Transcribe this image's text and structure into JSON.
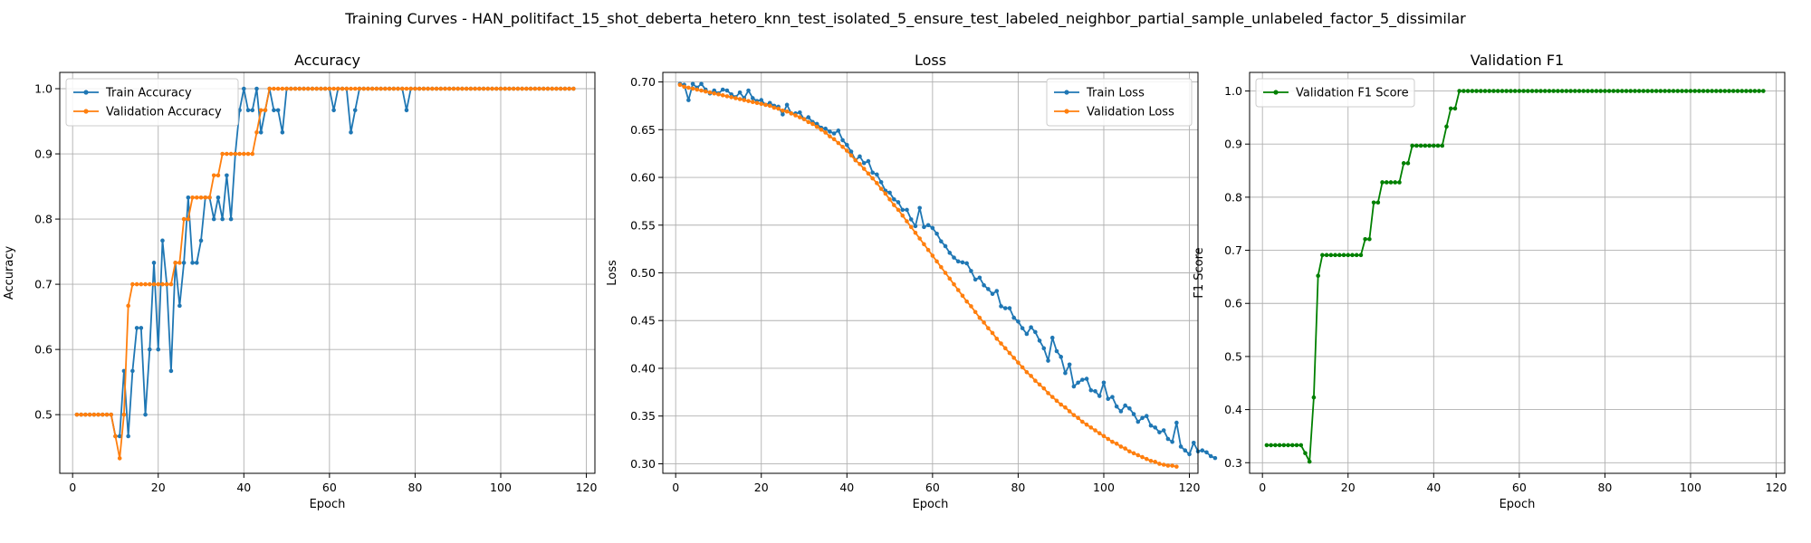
{
  "suptitle": "Training Curves - HAN_politifact_15_shot_deberta_hetero_knn_test_isolated_5_ensure_test_labeled_neighbor_partial_sample_unlabeled_factor_5_dissimilar",
  "colors": {
    "train": "#1f77b4",
    "validation": "#ff7f0e",
    "f1": "#008000",
    "grid": "#b0b0b0"
  },
  "chart_data": [
    {
      "type": "line",
      "title": "Accuracy",
      "xlabel": "Epoch",
      "ylabel": "Accuracy",
      "xlim": [
        -3,
        122
      ],
      "ylim": [
        0.41,
        1.025
      ],
      "xticks": [
        0,
        20,
        40,
        60,
        80,
        100,
        120
      ],
      "yticks": [
        0.5,
        0.6,
        0.7,
        0.8,
        0.9,
        1.0
      ],
      "ytick_labels": [
        "0.5",
        "0.6",
        "0.7",
        "0.8",
        "0.9",
        "1.0"
      ],
      "grid": true,
      "legend_position": "upper left",
      "series": [
        {
          "name": "Train Accuracy",
          "color": "#1f77b4",
          "x_start": 1,
          "values": [
            0.5,
            0.5,
            0.5,
            0.5,
            0.5,
            0.5,
            0.5,
            0.5,
            0.5,
            0.467,
            0.467,
            0.567,
            0.467,
            0.567,
            0.633,
            0.633,
            0.5,
            0.6,
            0.733,
            0.6,
            0.767,
            0.7,
            0.567,
            0.733,
            0.667,
            0.733,
            0.833,
            0.733,
            0.733,
            0.767,
            0.833,
            0.833,
            0.8,
            0.833,
            0.8,
            0.867,
            0.8,
            0.9,
            0.967,
            1.0,
            0.967,
            0.967,
            1.0,
            0.933,
            0.967,
            1.0,
            0.967,
            0.967,
            0.933,
            1.0,
            1.0,
            1.0,
            1.0,
            1.0,
            1.0,
            1.0,
            1.0,
            1.0,
            1.0,
            1.0,
            0.967,
            1.0,
            1.0,
            1.0,
            0.933,
            0.967,
            1.0,
            1.0,
            1.0,
            1.0,
            1.0,
            1.0,
            1.0,
            1.0,
            1.0,
            1.0,
            1.0,
            0.967,
            1.0,
            1.0,
            1.0,
            1.0,
            1.0,
            1.0,
            1.0,
            1.0,
            1.0,
            1.0,
            1.0,
            1.0,
            1.0,
            1.0,
            1.0,
            1.0,
            1.0,
            1.0,
            1.0,
            1.0,
            1.0,
            1.0,
            1.0,
            1.0,
            1.0,
            1.0,
            1.0,
            1.0,
            1.0,
            1.0,
            1.0,
            1.0,
            1.0,
            1.0,
            1.0,
            1.0,
            1.0,
            1.0,
            1.0
          ]
        },
        {
          "name": "Validation Accuracy",
          "color": "#ff7f0e",
          "x_start": 1,
          "values": [
            0.5,
            0.5,
            0.5,
            0.5,
            0.5,
            0.5,
            0.5,
            0.5,
            0.5,
            0.467,
            0.433,
            0.5,
            0.667,
            0.7,
            0.7,
            0.7,
            0.7,
            0.7,
            0.7,
            0.7,
            0.7,
            0.7,
            0.7,
            0.733,
            0.733,
            0.8,
            0.8,
            0.833,
            0.833,
            0.833,
            0.833,
            0.833,
            0.867,
            0.867,
            0.9,
            0.9,
            0.9,
            0.9,
            0.9,
            0.9,
            0.9,
            0.9,
            0.933,
            0.967,
            0.967,
            1.0,
            1.0,
            1.0,
            1.0,
            1.0,
            1.0,
            1.0,
            1.0,
            1.0,
            1.0,
            1.0,
            1.0,
            1.0,
            1.0,
            1.0,
            1.0,
            1.0,
            1.0,
            1.0,
            1.0,
            1.0,
            1.0,
            1.0,
            1.0,
            1.0,
            1.0,
            1.0,
            1.0,
            1.0,
            1.0,
            1.0,
            1.0,
            1.0,
            1.0,
            1.0,
            1.0,
            1.0,
            1.0,
            1.0,
            1.0,
            1.0,
            1.0,
            1.0,
            1.0,
            1.0,
            1.0,
            1.0,
            1.0,
            1.0,
            1.0,
            1.0,
            1.0,
            1.0,
            1.0,
            1.0,
            1.0,
            1.0,
            1.0,
            1.0,
            1.0,
            1.0,
            1.0,
            1.0,
            1.0,
            1.0,
            1.0,
            1.0,
            1.0,
            1.0,
            1.0,
            1.0,
            1.0
          ]
        }
      ]
    },
    {
      "type": "line",
      "title": "Loss",
      "xlabel": "Epoch",
      "ylabel": "Loss",
      "xlim": [
        -3,
        122
      ],
      "ylim": [
        0.29,
        0.71
      ],
      "xticks": [
        0,
        20,
        40,
        60,
        80,
        100,
        120
      ],
      "yticks": [
        0.3,
        0.35,
        0.4,
        0.45,
        0.5,
        0.55,
        0.6,
        0.65,
        0.7
      ],
      "ytick_labels": [
        "0.30",
        "0.35",
        "0.40",
        "0.45",
        "0.50",
        "0.55",
        "0.60",
        "0.65",
        "0.70"
      ],
      "grid": true,
      "legend_position": "upper right",
      "series": [
        {
          "name": "Train Loss",
          "color": "#1f77b4",
          "x_start": 1,
          "values": [
            0.698,
            0.697,
            0.681,
            0.698,
            0.694,
            0.698,
            0.692,
            0.688,
            0.691,
            0.688,
            0.692,
            0.691,
            0.687,
            0.684,
            0.689,
            0.683,
            0.691,
            0.683,
            0.68,
            0.681,
            0.676,
            0.678,
            0.675,
            0.674,
            0.666,
            0.676,
            0.667,
            0.667,
            0.668,
            0.661,
            0.663,
            0.658,
            0.656,
            0.652,
            0.651,
            0.648,
            0.646,
            0.649,
            0.639,
            0.634,
            0.627,
            0.618,
            0.622,
            0.615,
            0.617,
            0.605,
            0.603,
            0.595,
            0.586,
            0.584,
            0.577,
            0.574,
            0.566,
            0.566,
            0.556,
            0.549,
            0.568,
            0.548,
            0.55,
            0.547,
            0.541,
            0.533,
            0.528,
            0.521,
            0.516,
            0.512,
            0.511,
            0.51,
            0.502,
            0.493,
            0.495,
            0.487,
            0.483,
            0.478,
            0.481,
            0.465,
            0.463,
            0.463,
            0.453,
            0.449,
            0.442,
            0.436,
            0.443,
            0.438,
            0.429,
            0.421,
            0.408,
            0.432,
            0.418,
            0.412,
            0.395,
            0.404,
            0.381,
            0.385,
            0.388,
            0.389,
            0.377,
            0.376,
            0.371,
            0.385,
            0.368,
            0.37,
            0.36,
            0.355,
            0.361,
            0.358,
            0.352,
            0.344,
            0.348,
            0.35,
            0.34,
            0.338,
            0.333,
            0.335,
            0.326,
            0.323,
            0.343,
            0.318,
            0.314,
            0.31,
            0.322,
            0.313,
            0.314,
            0.312,
            0.308,
            0.306
          ]
        },
        {
          "name": "Validation Loss",
          "color": "#ff7f0e",
          "x_start": 1,
          "values": [
            0.697,
            0.695,
            0.694,
            0.693,
            0.692,
            0.691,
            0.69,
            0.689,
            0.688,
            0.687,
            0.686,
            0.685,
            0.684,
            0.683,
            0.682,
            0.681,
            0.68,
            0.679,
            0.678,
            0.677,
            0.676,
            0.675,
            0.673,
            0.672,
            0.67,
            0.669,
            0.667,
            0.665,
            0.663,
            0.661,
            0.658,
            0.656,
            0.653,
            0.65,
            0.647,
            0.643,
            0.64,
            0.636,
            0.632,
            0.628,
            0.623,
            0.618,
            0.614,
            0.609,
            0.604,
            0.599,
            0.594,
            0.588,
            0.583,
            0.577,
            0.571,
            0.566,
            0.56,
            0.554,
            0.548,
            0.542,
            0.536,
            0.53,
            0.524,
            0.518,
            0.512,
            0.506,
            0.5,
            0.494,
            0.488,
            0.482,
            0.476,
            0.47,
            0.465,
            0.459,
            0.453,
            0.448,
            0.442,
            0.437,
            0.431,
            0.426,
            0.421,
            0.416,
            0.411,
            0.406,
            0.401,
            0.396,
            0.392,
            0.387,
            0.383,
            0.379,
            0.374,
            0.37,
            0.366,
            0.362,
            0.359,
            0.355,
            0.351,
            0.348,
            0.344,
            0.341,
            0.338,
            0.335,
            0.332,
            0.329,
            0.326,
            0.323,
            0.321,
            0.318,
            0.316,
            0.313,
            0.311,
            0.309,
            0.307,
            0.305,
            0.303,
            0.302,
            0.3,
            0.299,
            0.298,
            0.298,
            0.297
          ]
        }
      ]
    },
    {
      "type": "line",
      "title": "Validation F1",
      "xlabel": "Epoch",
      "ylabel": "F1 Score",
      "xlim": [
        -3,
        122
      ],
      "ylim": [
        0.28,
        1.035
      ],
      "xticks": [
        0,
        20,
        40,
        60,
        80,
        100,
        120
      ],
      "yticks": [
        0.3,
        0.4,
        0.5,
        0.6,
        0.7,
        0.8,
        0.9,
        1.0
      ],
      "ytick_labels": [
        "0.3",
        "0.4",
        "0.5",
        "0.6",
        "0.7",
        "0.8",
        "0.9",
        "1.0"
      ],
      "grid": true,
      "legend_position": "upper left",
      "series": [
        {
          "name": "Validation F1 Score",
          "color": "#008000",
          "x_start": 1,
          "values": [
            0.333,
            0.333,
            0.333,
            0.333,
            0.333,
            0.333,
            0.333,
            0.333,
            0.333,
            0.318,
            0.302,
            0.423,
            0.652,
            0.691,
            0.691,
            0.691,
            0.691,
            0.691,
            0.691,
            0.691,
            0.691,
            0.691,
            0.691,
            0.721,
            0.721,
            0.79,
            0.79,
            0.828,
            0.828,
            0.828,
            0.828,
            0.828,
            0.864,
            0.864,
            0.897,
            0.897,
            0.897,
            0.897,
            0.897,
            0.897,
            0.897,
            0.897,
            0.933,
            0.967,
            0.967,
            1.0,
            1.0,
            1.0,
            1.0,
            1.0,
            1.0,
            1.0,
            1.0,
            1.0,
            1.0,
            1.0,
            1.0,
            1.0,
            1.0,
            1.0,
            1.0,
            1.0,
            1.0,
            1.0,
            1.0,
            1.0,
            1.0,
            1.0,
            1.0,
            1.0,
            1.0,
            1.0,
            1.0,
            1.0,
            1.0,
            1.0,
            1.0,
            1.0,
            1.0,
            1.0,
            1.0,
            1.0,
            1.0,
            1.0,
            1.0,
            1.0,
            1.0,
            1.0,
            1.0,
            1.0,
            1.0,
            1.0,
            1.0,
            1.0,
            1.0,
            1.0,
            1.0,
            1.0,
            1.0,
            1.0,
            1.0,
            1.0,
            1.0,
            1.0,
            1.0,
            1.0,
            1.0,
            1.0,
            1.0,
            1.0,
            1.0,
            1.0,
            1.0,
            1.0,
            1.0,
            1.0,
            1.0
          ]
        }
      ]
    }
  ]
}
